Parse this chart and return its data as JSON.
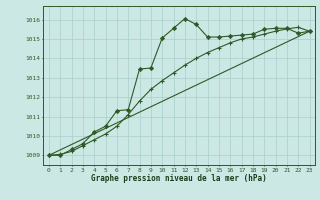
{
  "title": "Graphe pression niveau de la mer (hPa)",
  "background_color": "#cce8e4",
  "grid_color": "#aacfcc",
  "line_color": "#2d5a27",
  "xlim": [
    -0.5,
    23.5
  ],
  "ylim": [
    1008.5,
    1016.7
  ],
  "yticks": [
    1009,
    1010,
    1011,
    1012,
    1013,
    1014,
    1015,
    1016
  ],
  "xticks": [
    0,
    1,
    2,
    3,
    4,
    5,
    6,
    7,
    8,
    9,
    10,
    11,
    12,
    13,
    14,
    15,
    16,
    17,
    18,
    19,
    20,
    21,
    22,
    23
  ],
  "series1_x": [
    0,
    1,
    2,
    3,
    4,
    5,
    6,
    7,
    8,
    9,
    10,
    11,
    12,
    13,
    14,
    15,
    16,
    17,
    18,
    19,
    20,
    21,
    22,
    23
  ],
  "series1_y": [
    1009.0,
    1009.0,
    1009.3,
    1009.6,
    1010.2,
    1010.5,
    1011.3,
    1011.35,
    1013.45,
    1013.5,
    1015.05,
    1015.55,
    1016.05,
    1015.75,
    1015.1,
    1015.1,
    1015.15,
    1015.2,
    1015.25,
    1015.5,
    1015.55,
    1015.55,
    1015.3,
    1015.4
  ],
  "series2_x": [
    0,
    1,
    2,
    3,
    4,
    5,
    6,
    7,
    8,
    9,
    10,
    11,
    12,
    13,
    14,
    15,
    16,
    17,
    18,
    19,
    20,
    21,
    22,
    23
  ],
  "series2_y": [
    1009.0,
    1009.05,
    1009.2,
    1009.5,
    1009.8,
    1010.1,
    1010.5,
    1011.1,
    1011.8,
    1012.4,
    1012.85,
    1013.25,
    1013.65,
    1014.0,
    1014.3,
    1014.55,
    1014.8,
    1015.0,
    1015.1,
    1015.25,
    1015.4,
    1015.52,
    1015.6,
    1015.4
  ],
  "series3_x": [
    0,
    23
  ],
  "series3_y": [
    1009.0,
    1015.4
  ]
}
